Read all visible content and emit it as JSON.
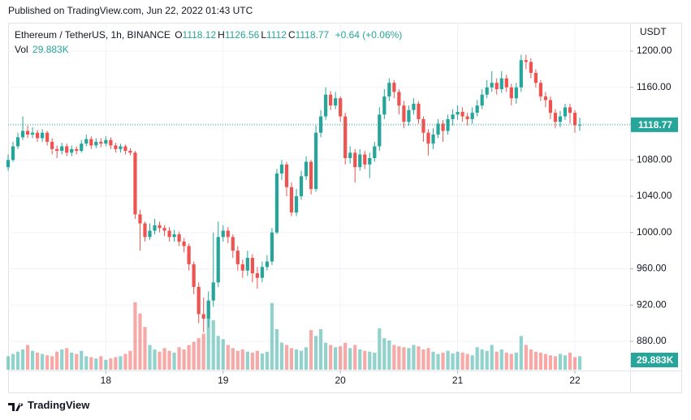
{
  "header": "Published on TradingView.com, Jun 22, 2022 01:43 UTC",
  "footer": "TradingView",
  "chart_data": {
    "type": "candlestick",
    "symbol": "Ethereum / TetherUS, 1h, BINANCE",
    "ohlc": [
      {
        "label": "O",
        "value": 1118.12
      },
      {
        "label": "H",
        "value": 1126.56
      },
      {
        "label": "L",
        "value": 1112.0
      },
      {
        "label": "C",
        "value": 1118.77
      }
    ],
    "change": "+0.64 (+0.06%)",
    "vol_name": "Vol",
    "vol_label": "29.883K",
    "currency": "USDT",
    "up_color": "#26a69a",
    "down_color": "#ef5350",
    "grid": true,
    "xlim": [
      0,
      127.3
    ],
    "xticks": [
      {
        "value": 20,
        "label": "18"
      },
      {
        "value": 44,
        "label": "19"
      },
      {
        "value": 68,
        "label": "20"
      },
      {
        "value": 92,
        "label": "21"
      },
      {
        "value": 116,
        "label": "22"
      }
    ],
    "ylim": [
      847.8,
      1231.3
    ],
    "yticks": [
      {
        "value": 880,
        "label": "880.00"
      },
      {
        "value": 920,
        "label": "920.00"
      },
      {
        "value": 960,
        "label": "960.00"
      },
      {
        "value": 1000,
        "label": "1000.00"
      },
      {
        "value": 1040,
        "label": "1040.00"
      },
      {
        "value": 1080,
        "label": "1080.00"
      },
      {
        "value": 1120,
        "label": "1120.00"
      },
      {
        "value": 1160,
        "label": "1160.00"
      },
      {
        "value": 1200,
        "label": "1200.00"
      }
    ],
    "vol_ylim": [
      0,
      270
    ],
    "open": [
      1072,
      1080,
      1095,
      1105,
      1112,
      1108,
      1110,
      1104,
      1110,
      1100,
      1092,
      1090,
      1095,
      1088,
      1092,
      1090,
      1098,
      1103,
      1096,
      1100,
      1098,
      1102,
      1096,
      1092,
      1095,
      1090,
      1088,
      1020,
      1010,
      995,
      1002,
      1008,
      1005,
      1002,
      995,
      998,
      990,
      985,
      965,
      940,
      910,
      905,
      925,
      945,
      995,
      1002,
      995,
      980,
      965,
      958,
      972,
      955,
      950,
      962,
      968,
      1000,
      1065,
      1075,
      1050,
      1022,
      1040,
      1062,
      1078,
      1048,
      1110,
      1128,
      1152,
      1140,
      1148,
      1128,
      1082,
      1088,
      1072,
      1086,
      1075,
      1082,
      1095,
      1130,
      1150,
      1165,
      1155,
      1140,
      1122,
      1135,
      1142,
      1125,
      1110,
      1098,
      1108,
      1120,
      1112,
      1125,
      1130,
      1133,
      1128,
      1125,
      1132,
      1140,
      1152,
      1160,
      1165,
      1158,
      1170,
      1160,
      1148,
      1160,
      1190,
      1188,
      1176,
      1165,
      1150,
      1146,
      1132,
      1122,
      1128,
      1138,
      1132,
      1118.12
    ],
    "high": [
      1086,
      1100,
      1110,
      1128,
      1118,
      1116,
      1113,
      1114,
      1112,
      1104,
      1096,
      1099,
      1098,
      1096,
      1095,
      1102,
      1108,
      1106,
      1104,
      1104,
      1106,
      1105,
      1099,
      1098,
      1097,
      1093,
      1090,
      1025,
      1012,
      1010,
      1015,
      1012,
      1008,
      1006,
      1003,
      1001,
      994,
      988,
      968,
      945,
      928,
      935,
      1000,
      1012,
      1008,
      1006,
      998,
      985,
      970,
      980,
      976,
      962,
      968,
      975,
      1005,
      1070,
      1080,
      1078,
      1055,
      1048,
      1068,
      1084,
      1080,
      1118,
      1135,
      1160,
      1156,
      1155,
      1150,
      1132,
      1095,
      1092,
      1092,
      1090,
      1088,
      1100,
      1138,
      1158,
      1170,
      1168,
      1158,
      1145,
      1140,
      1148,
      1145,
      1128,
      1114,
      1115,
      1125,
      1124,
      1130,
      1136,
      1140,
      1138,
      1132,
      1138,
      1146,
      1158,
      1168,
      1178,
      1170,
      1178,
      1174,
      1164,
      1165,
      1196,
      1196,
      1192,
      1180,
      1168,
      1155,
      1150,
      1136,
      1134,
      1142,
      1142,
      1135,
      1126.56
    ],
    "low": [
      1068,
      1078,
      1092,
      1102,
      1104,
      1104,
      1100,
      1100,
      1096,
      1086,
      1082,
      1086,
      1084,
      1084,
      1086,
      1088,
      1095,
      1092,
      1093,
      1094,
      1095,
      1092,
      1088,
      1088,
      1086,
      1085,
      1015,
      980,
      990,
      992,
      998,
      1000,
      996,
      990,
      990,
      985,
      978,
      958,
      932,
      900,
      890,
      895,
      918,
      940,
      990,
      988,
      972,
      958,
      950,
      952,
      945,
      938,
      945,
      958,
      964,
      998,
      1058,
      1040,
      1018,
      1018,
      1036,
      1058,
      1042,
      1045,
      1105,
      1124,
      1135,
      1136,
      1122,
      1075,
      1076,
      1055,
      1068,
      1070,
      1060,
      1078,
      1090,
      1125,
      1145,
      1148,
      1130,
      1115,
      1118,
      1130,
      1120,
      1100,
      1085,
      1092,
      1104,
      1100,
      1108,
      1118,
      1124,
      1122,
      1118,
      1120,
      1128,
      1136,
      1148,
      1155,
      1152,
      1154,
      1155,
      1140,
      1142,
      1155,
      1180,
      1170,
      1160,
      1145,
      1138,
      1125,
      1115,
      1116,
      1124,
      1120,
      1110,
      1112.0
    ],
    "close": [
      1080,
      1095,
      1105,
      1112,
      1108,
      1110,
      1104,
      1110,
      1100,
      1092,
      1090,
      1095,
      1088,
      1092,
      1090,
      1098,
      1103,
      1096,
      1100,
      1098,
      1102,
      1096,
      1092,
      1095,
      1090,
      1088,
      1020,
      1010,
      995,
      1002,
      1008,
      1005,
      1002,
      995,
      998,
      990,
      985,
      965,
      940,
      910,
      905,
      925,
      945,
      995,
      1002,
      995,
      980,
      965,
      958,
      972,
      955,
      950,
      962,
      968,
      1000,
      1065,
      1075,
      1050,
      1022,
      1040,
      1062,
      1078,
      1048,
      1110,
      1128,
      1152,
      1140,
      1148,
      1128,
      1082,
      1088,
      1072,
      1086,
      1075,
      1082,
      1095,
      1130,
      1150,
      1165,
      1155,
      1140,
      1122,
      1135,
      1142,
      1125,
      1110,
      1098,
      1108,
      1120,
      1112,
      1125,
      1130,
      1133,
      1128,
      1125,
      1132,
      1140,
      1152,
      1160,
      1165,
      1158,
      1170,
      1160,
      1148,
      1160,
      1190,
      1188,
      1176,
      1165,
      1150,
      1146,
      1132,
      1122,
      1128,
      1138,
      1132,
      1118.12,
      1118.77
    ],
    "volume": [
      30,
      35,
      40,
      45,
      55,
      42,
      38,
      35,
      32,
      30,
      40,
      45,
      48,
      38,
      35,
      42,
      30,
      28,
      25,
      30,
      22,
      25,
      28,
      30,
      35,
      42,
      150,
      125,
      95,
      55,
      45,
      40,
      48,
      42,
      38,
      50,
      45,
      55,
      62,
      70,
      80,
      150,
      110,
      75,
      68,
      55,
      48,
      42,
      45,
      40,
      38,
      42,
      36,
      40,
      148,
      90,
      60,
      55,
      48,
      45,
      42,
      50,
      88,
      75,
      90,
      60,
      55,
      50,
      52,
      60,
      48,
      55,
      45,
      42,
      40,
      38,
      92,
      70,
      65,
      55,
      52,
      50,
      48,
      55,
      52,
      45,
      48,
      40,
      35,
      38,
      42,
      36,
      40,
      38,
      35,
      32,
      50,
      45,
      42,
      55,
      40,
      45,
      38,
      35,
      38,
      75,
      55,
      45,
      40,
      38,
      35,
      32,
      30,
      35,
      32,
      38,
      28,
      29.883
    ]
  }
}
